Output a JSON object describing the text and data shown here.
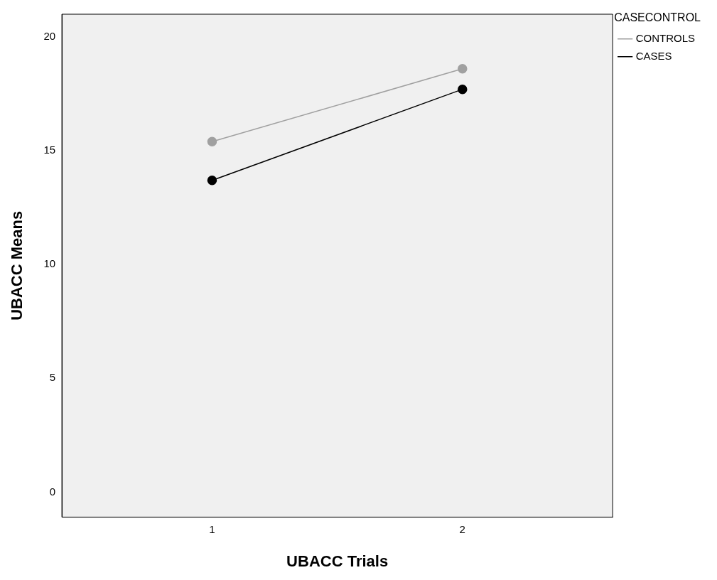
{
  "chart_data": {
    "type": "line",
    "xlabel": "UBACC Trials",
    "ylabel": "UBACC Means",
    "legend_title": "CASECONTROL",
    "x": [
      1,
      2
    ],
    "xlim": [
      0.4,
      2.6
    ],
    "xticks": [
      1,
      2
    ],
    "ylim": [
      -1.1,
      21
    ],
    "yticks": [
      0,
      5,
      10,
      15,
      20
    ],
    "grid": false,
    "legend": "top right",
    "marker": "circle",
    "line_style": "solid",
    "series": [
      {
        "name": "CONTROLS",
        "color": "#a0a0a0",
        "values": [
          15.4,
          18.6
        ]
      },
      {
        "name": "CASES",
        "color": "#000000",
        "values": [
          13.7,
          17.7
        ]
      }
    ]
  }
}
